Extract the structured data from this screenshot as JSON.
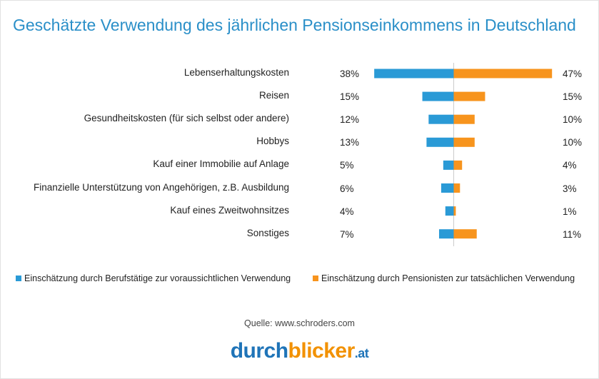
{
  "chart_data": {
    "type": "bar",
    "title": "Geschätzte Verwendung des jährlichen Pensionseinkommens in Deutschland",
    "categories": [
      "Lebenserhaltungskosten",
      "Reisen",
      "Gesundheitskosten (für sich selbst oder andere)",
      "Hobbys",
      "Kauf einer Immobilie auf Anlage",
      "Finanzielle Unterstützung von Angehörigen, z.B. Ausbildung",
      "Kauf eines Zweitwohnsitzes",
      "Sonstiges"
    ],
    "series": [
      {
        "name": "Einschätzung durch Berufstätige zur voraussichtlichen Verwendung",
        "color": "#2a9ad6",
        "values": [
          38,
          15,
          12,
          13,
          5,
          6,
          4,
          7
        ],
        "labels": [
          "38%",
          "15%",
          "12%",
          "13%",
          "5%",
          "6%",
          "4%",
          "7%"
        ]
      },
      {
        "name": "Einschätzung durch Pensionisten zur tatsächlichen Verwendung",
        "color": "#f7941d",
        "values": [
          47,
          15,
          10,
          10,
          4,
          3,
          1,
          11
        ],
        "labels": [
          "47%",
          "15%",
          "10%",
          "10%",
          "4%",
          "3%",
          "1%",
          "11%"
        ]
      }
    ],
    "legend_position": "bottom"
  },
  "source": "Quelle: www.schroders.com",
  "logo": {
    "part1": "durch",
    "part2": "blicker",
    "part3": ".at"
  }
}
